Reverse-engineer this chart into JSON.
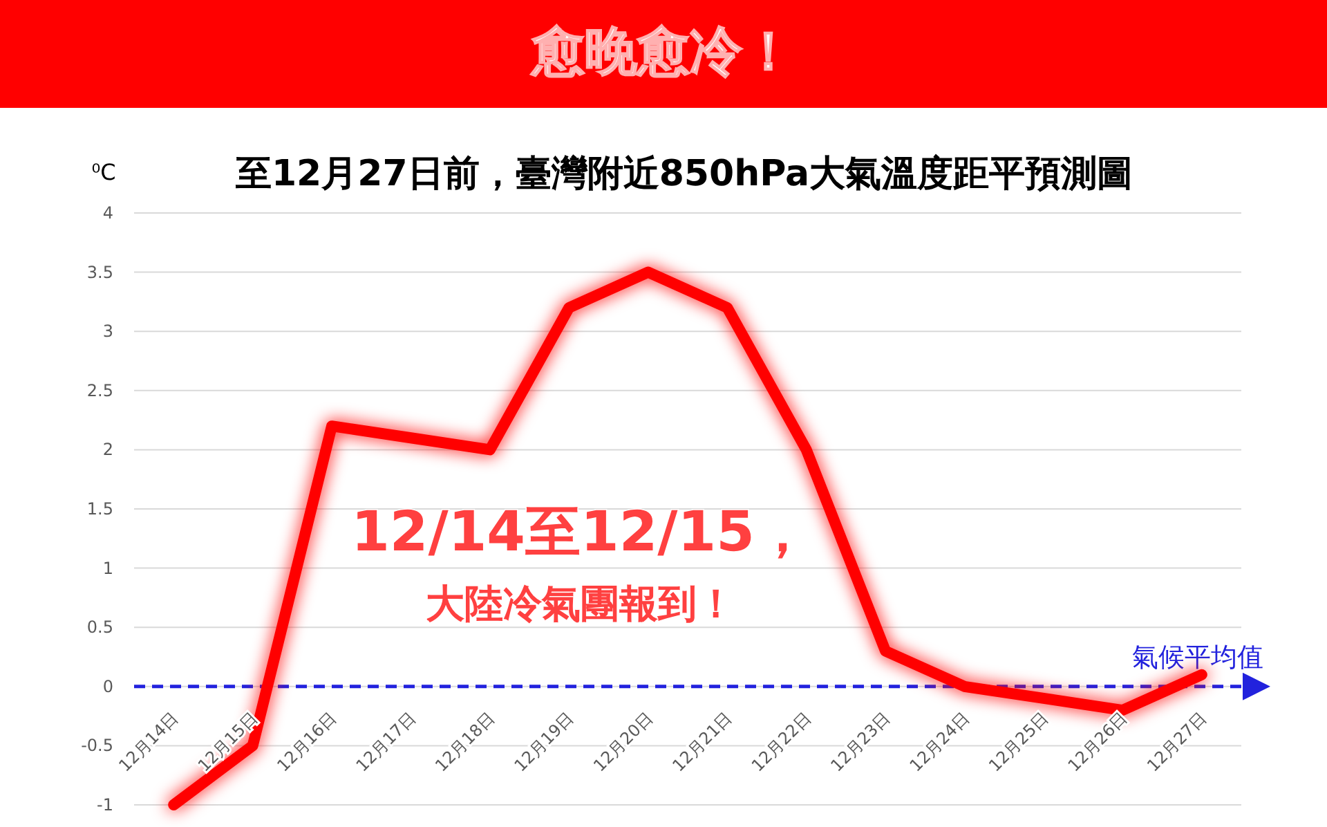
{
  "chart_data": {
    "type": "line",
    "title": "愈晚愈冷！",
    "subtitle": "至12月27日前，臺灣附近850hPa大氣溫度距平預測圖",
    "ylabel": "⁰C",
    "categories": [
      "12月14日",
      "12月15日",
      "12月16日",
      "12月17日",
      "12月18日",
      "12月19日",
      "12月20日",
      "12月21日",
      "12月22日",
      "12月23日",
      "12月24日",
      "12月25日",
      "12月26日",
      "12月27日"
    ],
    "series": [
      {
        "color": "#ff0000",
        "values": [
          -1,
          -0.5,
          2.2,
          2.1,
          2.0,
          3.2,
          3.5,
          3.2,
          2.0,
          0.3,
          0.0,
          -0.1,
          -0.2,
          0.1
        ]
      }
    ],
    "ylim": [
      -1,
      4
    ],
    "yticks": [
      -1,
      -0.5,
      0,
      0.5,
      1,
      1.5,
      2,
      2.5,
      3,
      3.5,
      4
    ],
    "grid": "y",
    "line_style": "solid",
    "ref_lines": [
      {
        "axis": "y",
        "value": 0,
        "label": "氣候平均值",
        "color": "#2222dd",
        "line_style": "dashed"
      }
    ],
    "annotations": [
      "12/14至12/15，",
      "大陸冷氣團報到！"
    ]
  }
}
